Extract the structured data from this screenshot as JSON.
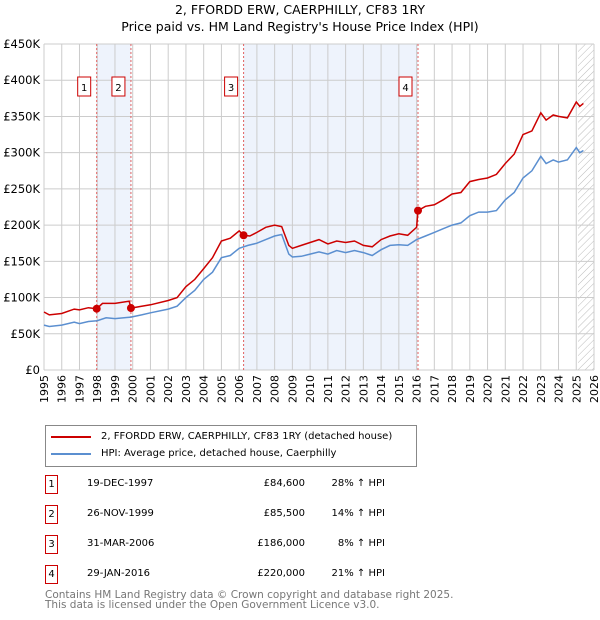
{
  "title": "2, FFORDD ERW, CAERPHILLY, CF83 1RY",
  "subtitle": "Price paid vs. HM Land Registry's House Price Index (HPI)",
  "chart_data": {
    "type": "line",
    "title": "2, FFORDD ERW, CAERPHILLY, CF83 1RY",
    "subtitle": "Price paid vs. HM Land Registry's House Price Index (HPI)",
    "xlim": [
      1995,
      2026
    ],
    "ylim": [
      0,
      450000
    ],
    "x_ticks": [
      "1995",
      "1996",
      "1997",
      "1998",
      "1999",
      "2000",
      "2001",
      "2002",
      "2003",
      "2004",
      "2005",
      "2006",
      "2007",
      "2008",
      "2009",
      "2010",
      "2011",
      "2012",
      "2013",
      "2014",
      "2015",
      "2016",
      "2017",
      "2018",
      "2019",
      "2020",
      "2021",
      "2022",
      "2023",
      "2024",
      "2025",
      "2026"
    ],
    "y_ticks": [
      {
        "v": 0,
        "label": "£0"
      },
      {
        "v": 50000,
        "label": "£50K"
      },
      {
        "v": 100000,
        "label": "£100K"
      },
      {
        "v": 150000,
        "label": "£150K"
      },
      {
        "v": 200000,
        "label": "£200K"
      },
      {
        "v": 250000,
        "label": "£250K"
      },
      {
        "v": 300000,
        "label": "£300K"
      },
      {
        "v": 350000,
        "label": "£350K"
      },
      {
        "v": 400000,
        "label": "£400K"
      },
      {
        "v": 450000,
        "label": "£450K"
      }
    ],
    "grid": true,
    "colors": {
      "property": "#cc0000",
      "hpi": "#5b8fd0",
      "band": "#eef3fc"
    },
    "shaded_ranges": [
      [
        1997.97,
        1999.9
      ],
      [
        2006.25,
        2016.08
      ]
    ],
    "forecast_start": 2025.1,
    "series": [
      {
        "name": "2, FFORDD ERW, CAERPHILLY, CF83 1RY (detached house)",
        "x": [
          1995,
          1995.3,
          1996,
          1996.7,
          1997,
          1997.5,
          1997.97,
          1998.3,
          1999,
          1999.8,
          1999.9,
          2000.5,
          2001,
          2002,
          2002.5,
          2003,
          2003.5,
          2004,
          2004.5,
          2005,
          2005.5,
          2006,
          2006.25,
          2006.6,
          2007,
          2007.5,
          2008,
          2008.4,
          2008.8,
          2009,
          2009.5,
          2010,
          2010.5,
          2011,
          2011.5,
          2012,
          2012.5,
          2013,
          2013.5,
          2014,
          2014.5,
          2015,
          2015.5,
          2016,
          2016.08,
          2016.5,
          2017,
          2017.5,
          2018,
          2018.5,
          2019,
          2019.5,
          2020,
          2020.5,
          2021,
          2021.5,
          2022,
          2022.5,
          2023,
          2023.3,
          2023.7,
          2024,
          2024.5,
          2025,
          2025.2,
          2025.4
        ],
        "y": [
          80000,
          76000,
          78000,
          84000,
          83000,
          86000,
          84600,
          92000,
          92000,
          95000,
          85500,
          88000,
          90000,
          96000,
          100000,
          115000,
          125000,
          140000,
          155000,
          178000,
          182000,
          192000,
          186000,
          185000,
          190000,
          197000,
          200000,
          198000,
          172000,
          168000,
          172000,
          176000,
          180000,
          174000,
          178000,
          176000,
          178000,
          172000,
          170000,
          180000,
          185000,
          188000,
          186000,
          197000,
          220000,
          226000,
          228000,
          235000,
          243000,
          245000,
          260000,
          263000,
          265000,
          270000,
          285000,
          298000,
          325000,
          330000,
          355000,
          345000,
          352000,
          350000,
          348000,
          370000,
          364000,
          368000
        ]
      },
      {
        "name": "HPI: Average price, detached house, Caerphilly",
        "x": [
          1995,
          1995.3,
          1996,
          1996.7,
          1997,
          1997.5,
          1998,
          1998.5,
          1999,
          1999.9,
          2000.5,
          2001,
          2002,
          2002.5,
          2003,
          2003.5,
          2004,
          2004.5,
          2005,
          2005.5,
          2006,
          2006.5,
          2007,
          2007.5,
          2008,
          2008.4,
          2008.8,
          2009,
          2009.5,
          2010,
          2010.5,
          2011,
          2011.5,
          2012,
          2012.5,
          2013,
          2013.5,
          2014,
          2014.5,
          2015,
          2015.5,
          2016,
          2016.5,
          2017,
          2017.5,
          2018,
          2018.5,
          2019,
          2019.5,
          2020,
          2020.5,
          2021,
          2021.5,
          2022,
          2022.5,
          2023,
          2023.3,
          2023.7,
          2024,
          2024.5,
          2025,
          2025.2,
          2025.4
        ],
        "y": [
          62000,
          60000,
          62000,
          66000,
          64000,
          67000,
          68000,
          72000,
          71000,
          73000,
          76000,
          79000,
          84000,
          88000,
          100000,
          110000,
          125000,
          135000,
          155000,
          158000,
          168000,
          172000,
          175000,
          180000,
          185000,
          187000,
          160000,
          156000,
          157000,
          160000,
          163000,
          160000,
          165000,
          162000,
          165000,
          162000,
          158000,
          166000,
          172000,
          173000,
          172000,
          180000,
          185000,
          190000,
          195000,
          200000,
          203000,
          213000,
          218000,
          218000,
          220000,
          235000,
          245000,
          265000,
          275000,
          295000,
          285000,
          290000,
          287000,
          290000,
          307000,
          300000,
          303000
        ]
      }
    ],
    "markers": [
      {
        "label": "1",
        "x": 1997.97,
        "y": 84600
      },
      {
        "label": "2",
        "x": 1999.9,
        "y": 85500
      },
      {
        "label": "3",
        "x": 2006.25,
        "y": 186000
      },
      {
        "label": "4",
        "x": 2016.08,
        "y": 220000
      }
    ]
  },
  "legend": {
    "property": "2, FFORDD ERW, CAERPHILLY, CF83 1RY (detached house)",
    "hpi": "HPI: Average price, detached house, Caerphilly"
  },
  "transactions": [
    {
      "n": "1",
      "date": "19-DEC-1997",
      "price": "£84,600",
      "delta": "28% ↑ HPI"
    },
    {
      "n": "2",
      "date": "26-NOV-1999",
      "price": "£85,500",
      "delta": "14% ↑ HPI"
    },
    {
      "n": "3",
      "date": "31-MAR-2006",
      "price": "£186,000",
      "delta": "8% ↑ HPI"
    },
    {
      "n": "4",
      "date": "29-JAN-2016",
      "price": "£220,000",
      "delta": "21% ↑ HPI"
    }
  ],
  "footer": {
    "line1": "Contains HM Land Registry data © Crown copyright and database right 2025.",
    "line2": "This data is licensed under the Open Government Licence v3.0."
  }
}
